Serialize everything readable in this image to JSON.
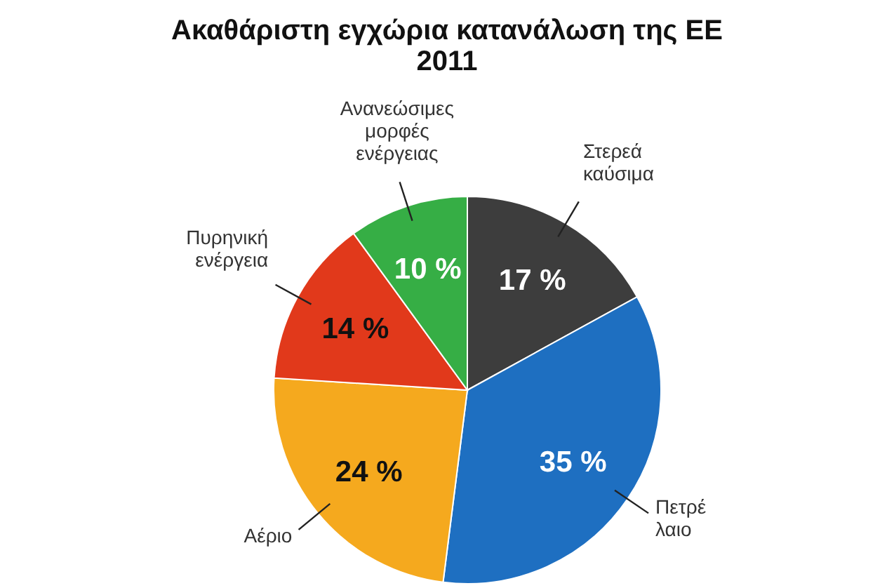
{
  "chart_data": {
    "type": "pie",
    "title": "Ακαθάριστη εγχώρια κατανάλωση της ΕΕ\n2011",
    "categories": [
      "Στερεά\nκαύσιμα",
      "Πετρέ\nλαιο",
      "Αέριο",
      "Πυρηνική\nενέργεια",
      "Ανανεώσιμες\nμορφές\nενέργειας"
    ],
    "values": [
      17,
      35,
      24,
      14,
      10
    ],
    "colors": [
      "#3d3d3d",
      "#1e6fc1",
      "#f5a91e",
      "#e1391b",
      "#36ae45"
    ],
    "value_labels": [
      "17 %",
      "35 %",
      "24 %",
      "14 %",
      "10 %"
    ]
  }
}
